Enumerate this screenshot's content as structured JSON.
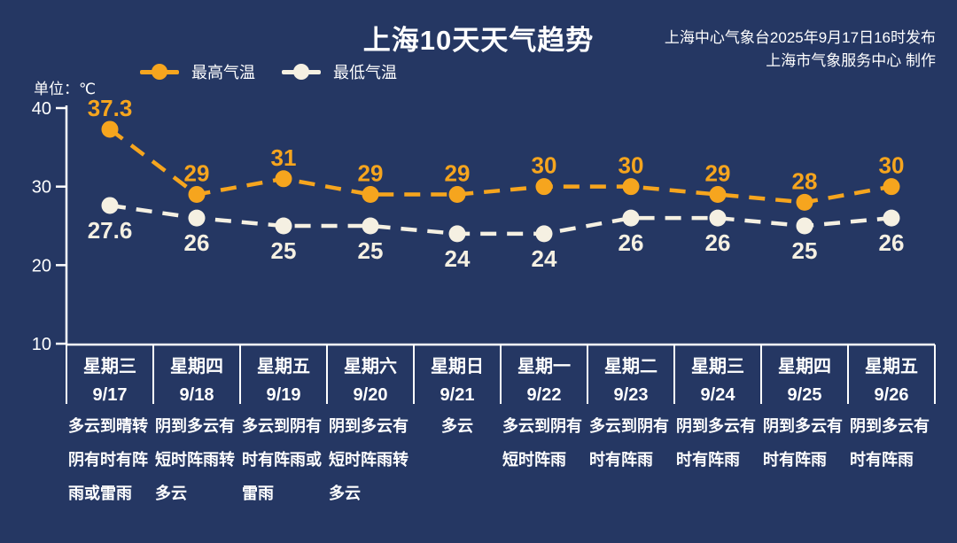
{
  "header": {
    "title": "上海10天天气趋势",
    "publisher_line1": "上海中心气象台2025年9月17日16时发布",
    "publisher_line2": "上海市气象服务中心 制作",
    "unit_label": "单位：℃"
  },
  "colors": {
    "background": "#253763",
    "axis": "#FFFFFF",
    "text": "#FFFFFF",
    "max_series": "#F6A51E",
    "min_series": "#F5F0E2"
  },
  "chart_data": {
    "type": "line",
    "line_style": "dashed",
    "grid": false,
    "legend_position": "top-left",
    "ylim": [
      10,
      40
    ],
    "yticks": [
      40,
      30,
      20,
      10
    ],
    "x_categories": [
      "9/17",
      "9/18",
      "9/19",
      "9/20",
      "9/21",
      "9/22",
      "9/23",
      "9/24",
      "9/25",
      "9/26"
    ],
    "days": [
      {
        "weekday": "星期三",
        "date": "9/17",
        "weather": "多云到晴转阴有时有阵雨或雷雨"
      },
      {
        "weekday": "星期四",
        "date": "9/18",
        "weather": "阴到多云有短时阵雨转多云"
      },
      {
        "weekday": "星期五",
        "date": "9/19",
        "weather": "多云到阴有时有阵雨或雷雨"
      },
      {
        "weekday": "星期六",
        "date": "9/20",
        "weather": "阴到多云有短时阵雨转多云"
      },
      {
        "weekday": "星期日",
        "date": "9/21",
        "weather": "多云"
      },
      {
        "weekday": "星期一",
        "date": "9/22",
        "weather": "多云到阴有短时阵雨"
      },
      {
        "weekday": "星期二",
        "date": "9/23",
        "weather": "多云到阴有时有阵雨"
      },
      {
        "weekday": "星期三",
        "date": "9/24",
        "weather": "阴到多云有时有阵雨"
      },
      {
        "weekday": "星期四",
        "date": "9/25",
        "weather": "阴到多云有时有阵雨"
      },
      {
        "weekday": "星期五",
        "date": "9/26",
        "weather": "阴到多云有时有阵雨"
      }
    ],
    "series": [
      {
        "name": "最高气温",
        "color": "#F6A51E",
        "values": [
          37.3,
          29,
          31,
          29,
          29,
          30,
          30,
          29,
          28,
          30
        ]
      },
      {
        "name": "最低气温",
        "color": "#F5F0E2",
        "values": [
          27.6,
          26,
          25,
          25,
          24,
          24,
          26,
          26,
          25,
          26
        ]
      }
    ]
  }
}
